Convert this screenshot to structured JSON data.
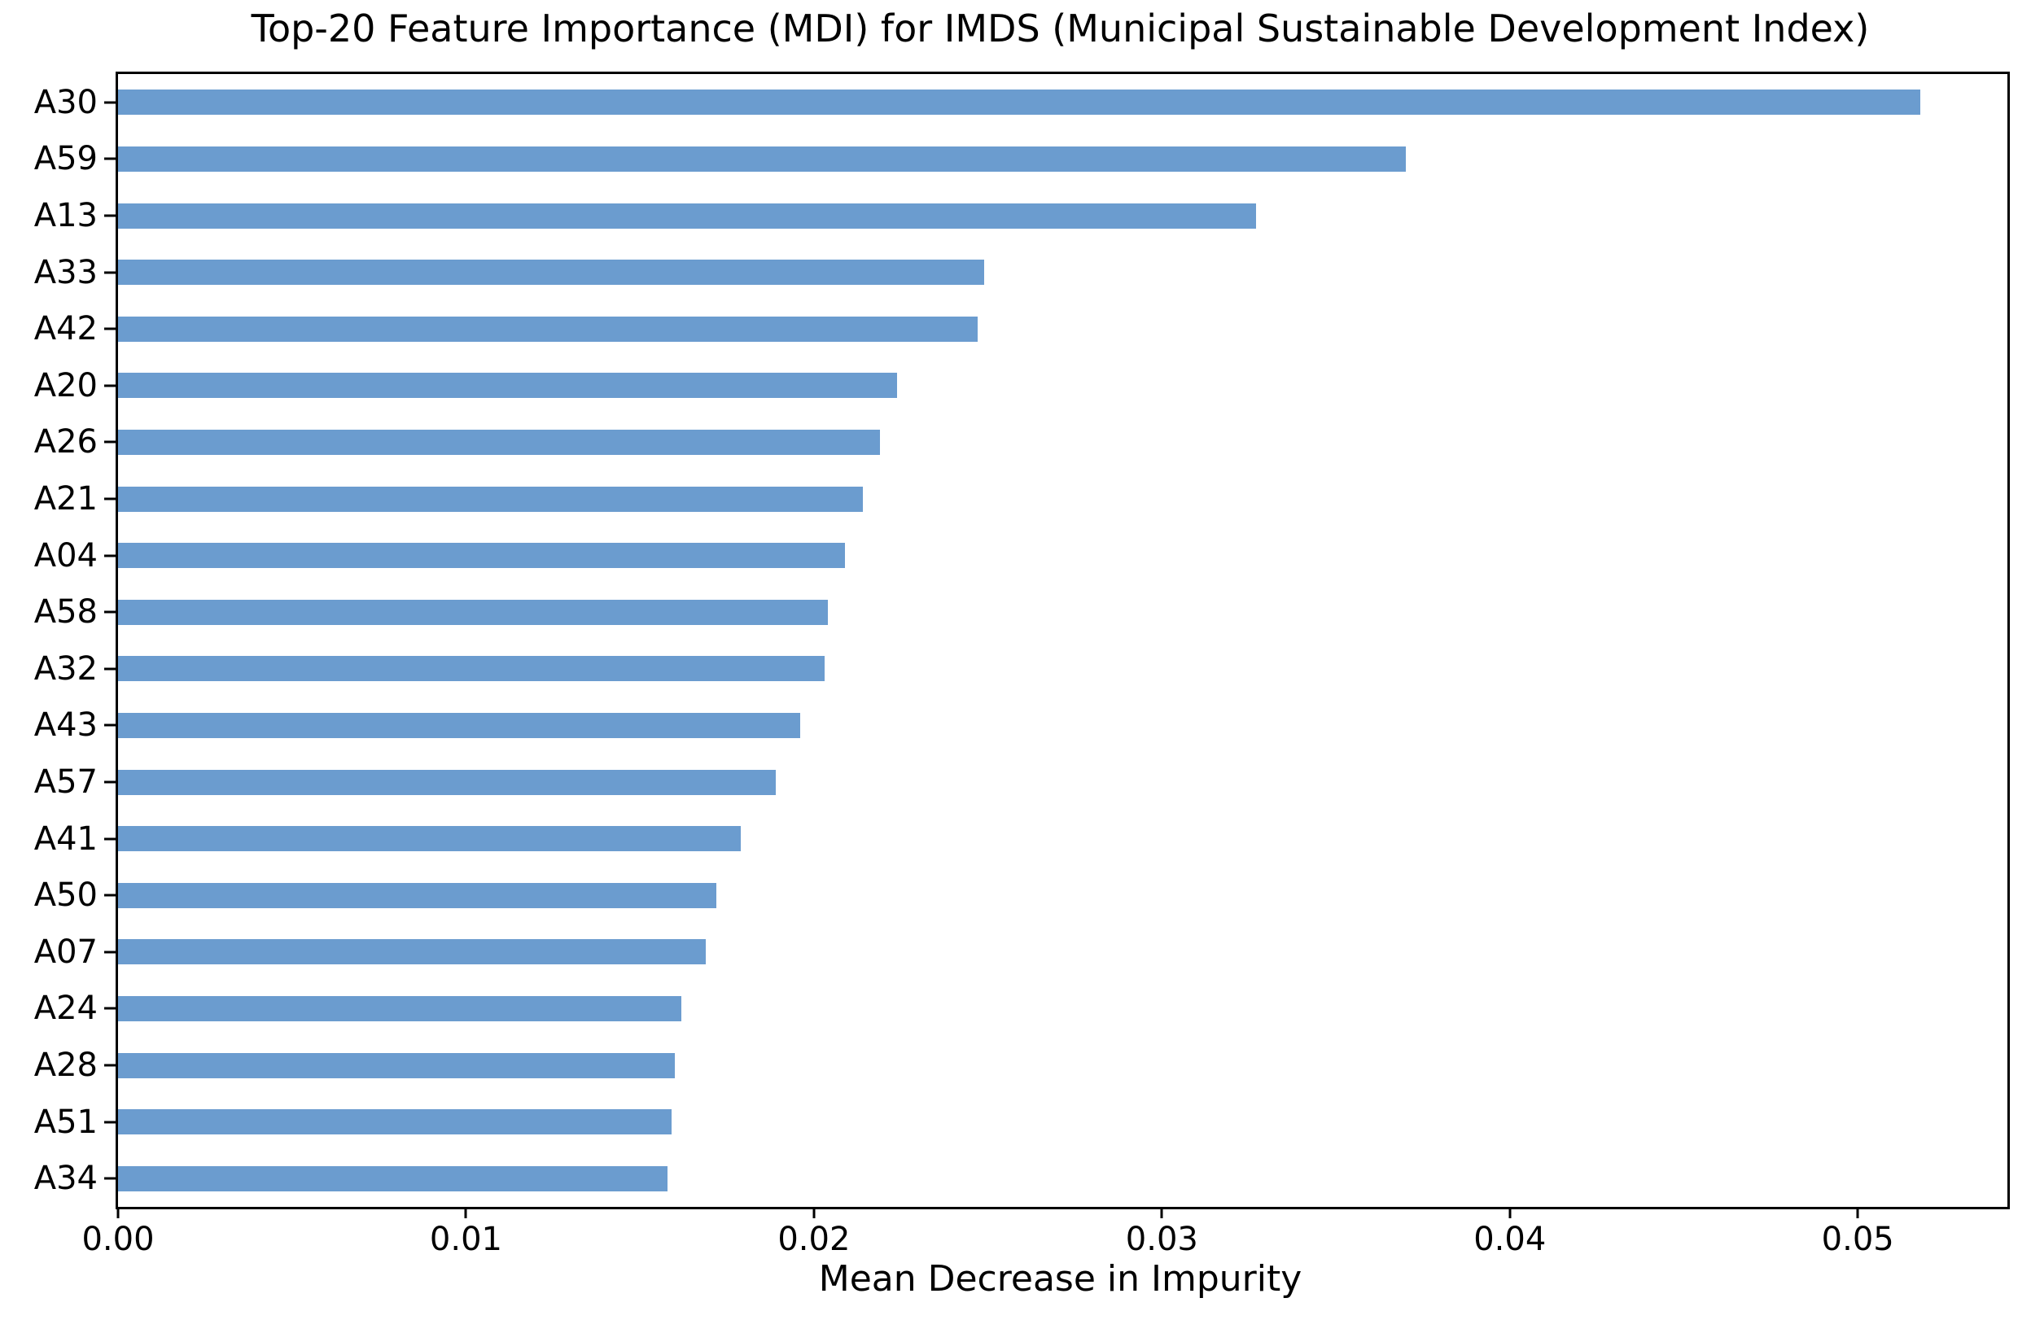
{
  "title": "Top-20 Feature Importance (MDI) for IMDS (Municipal Sustainable Development Index)",
  "chart_data": {
    "type": "bar",
    "orientation": "horizontal",
    "title": "Top-20 Feature Importance (MDI) for IMDS (Municipal Sustainable Development Index)",
    "xlabel": "Mean Decrease in Impurity",
    "ylabel": "",
    "categories": [
      "A30",
      "A59",
      "A13",
      "A33",
      "A42",
      "A20",
      "A26",
      "A21",
      "A04",
      "A58",
      "A32",
      "A43",
      "A57",
      "A41",
      "A50",
      "A07",
      "A24",
      "A28",
      "A51",
      "A34"
    ],
    "values": [
      0.0518,
      0.037,
      0.0327,
      0.0249,
      0.0247,
      0.0224,
      0.0219,
      0.0214,
      0.0209,
      0.0204,
      0.0203,
      0.0196,
      0.0189,
      0.0179,
      0.0172,
      0.0169,
      0.0162,
      0.016,
      0.0159,
      0.0158
    ],
    "xlim": [
      0,
      0.0543
    ],
    "xticks": {
      "values": [
        0.0,
        0.01,
        0.02,
        0.03,
        0.04,
        0.05
      ],
      "labels": [
        "0.00",
        "0.01",
        "0.02",
        "0.03",
        "0.04",
        "0.05"
      ]
    },
    "grid": false,
    "legend_position": "none",
    "bar_color": "#6B9CCF",
    "spine_color": "#000000",
    "text_color": "#000000"
  }
}
